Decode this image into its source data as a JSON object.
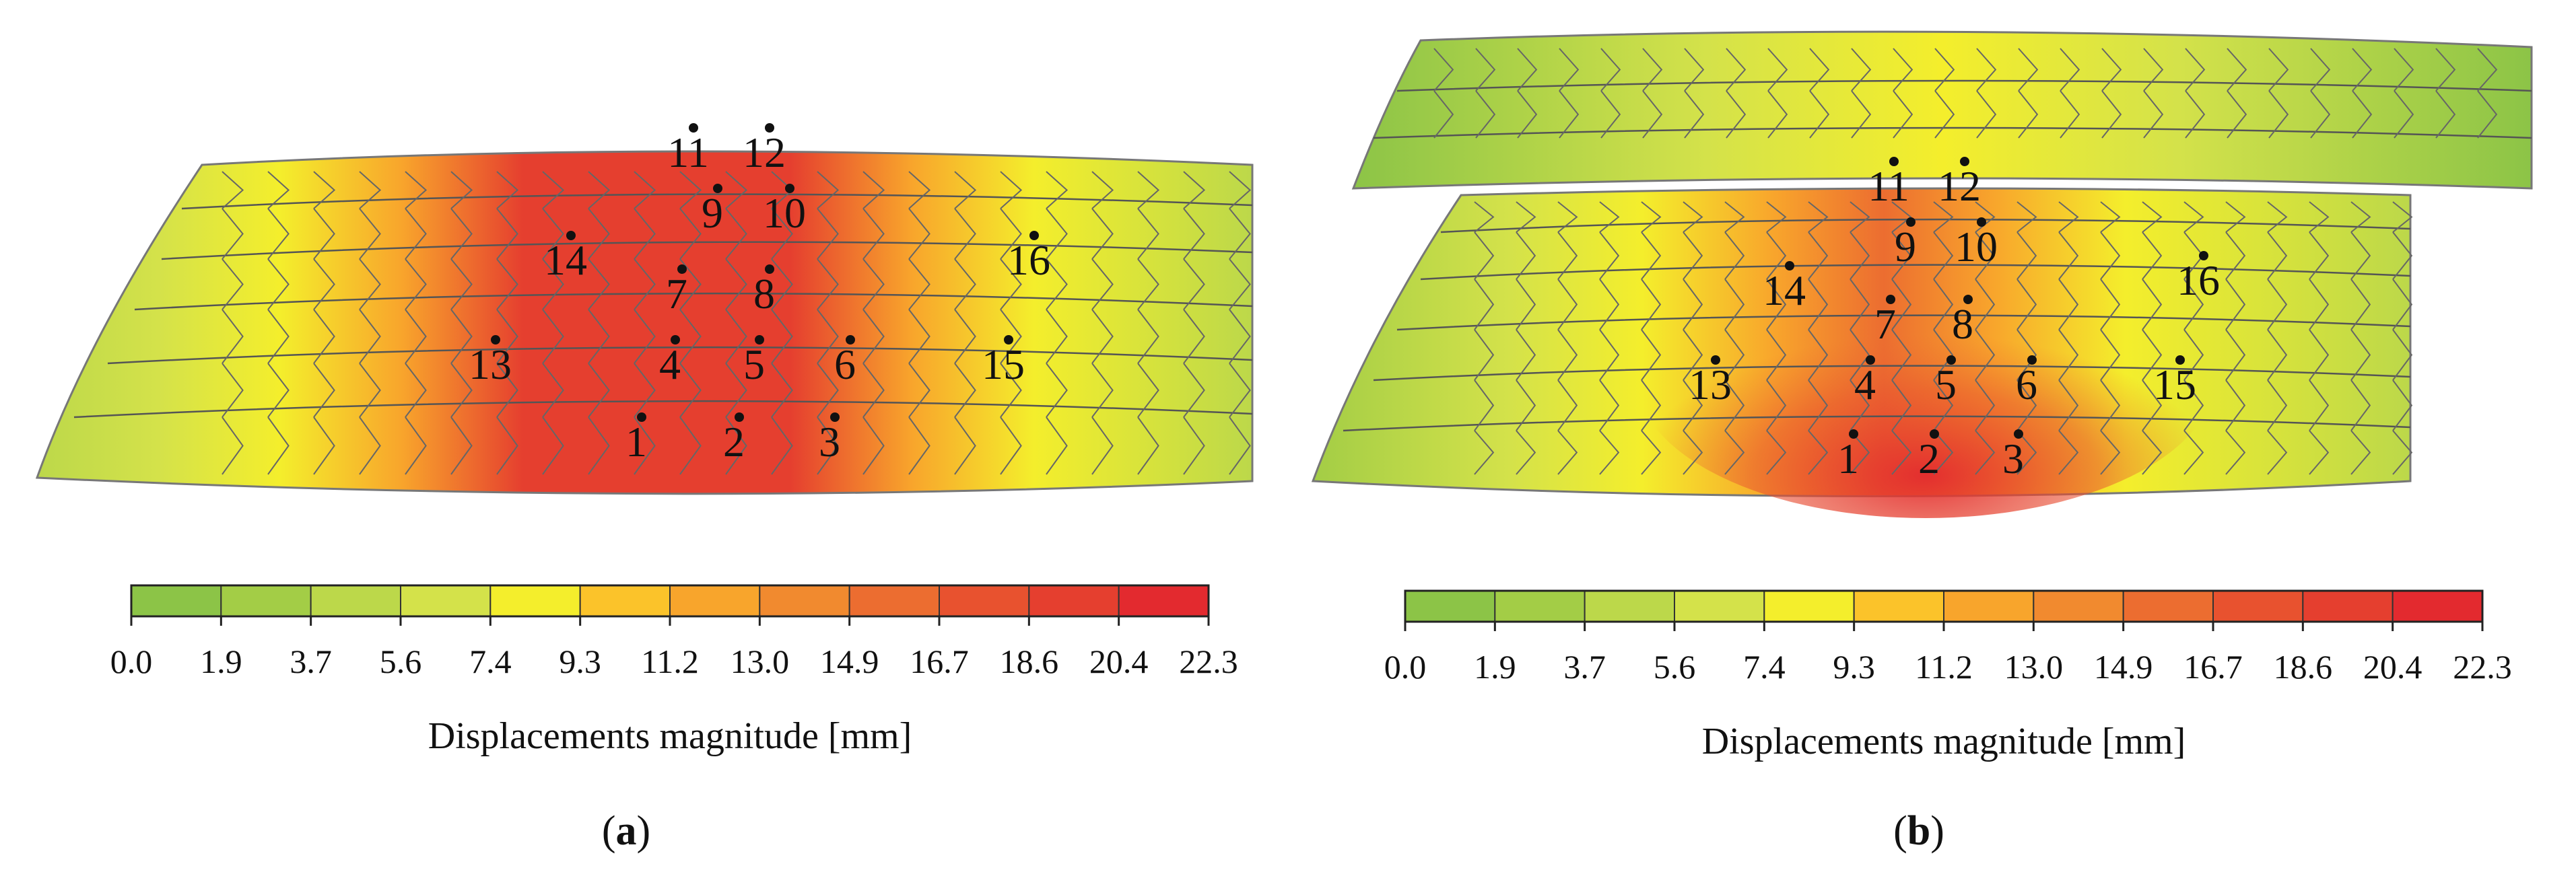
{
  "panels": [
    {
      "id": "a",
      "caption_open": "(",
      "caption_letter": "a",
      "caption_close": ")",
      "upper_ring": false,
      "points": [
        "1",
        "2",
        "3",
        "4",
        "5",
        "6",
        "7",
        "8",
        "9",
        "10",
        "11",
        "12",
        "13",
        "14",
        "15",
        "16"
      ]
    },
    {
      "id": "b",
      "caption_open": "(",
      "caption_letter": "b",
      "caption_close": ")",
      "upper_ring": true,
      "points": [
        "1",
        "2",
        "3",
        "4",
        "5",
        "6",
        "7",
        "8",
        "9",
        "10",
        "11",
        "12",
        "13",
        "14",
        "15",
        "16"
      ]
    }
  ],
  "colorbar": {
    "title": "Displacements magnitude [mm]",
    "ticks": [
      "0.0",
      "1.9",
      "3.7",
      "5.6",
      "7.4",
      "9.3",
      "11.2",
      "13.0",
      "14.9",
      "16.7",
      "18.6",
      "20.4",
      "22.3"
    ],
    "colors": [
      "#8cc447",
      "#a3cd46",
      "#bcd84a",
      "#d4e24a",
      "#f4ee2c",
      "#fbc32a",
      "#f8a52c",
      "#f18a2f",
      "#ec6d30",
      "#e8522f",
      "#e53f2f",
      "#e32a2f"
    ]
  }
}
